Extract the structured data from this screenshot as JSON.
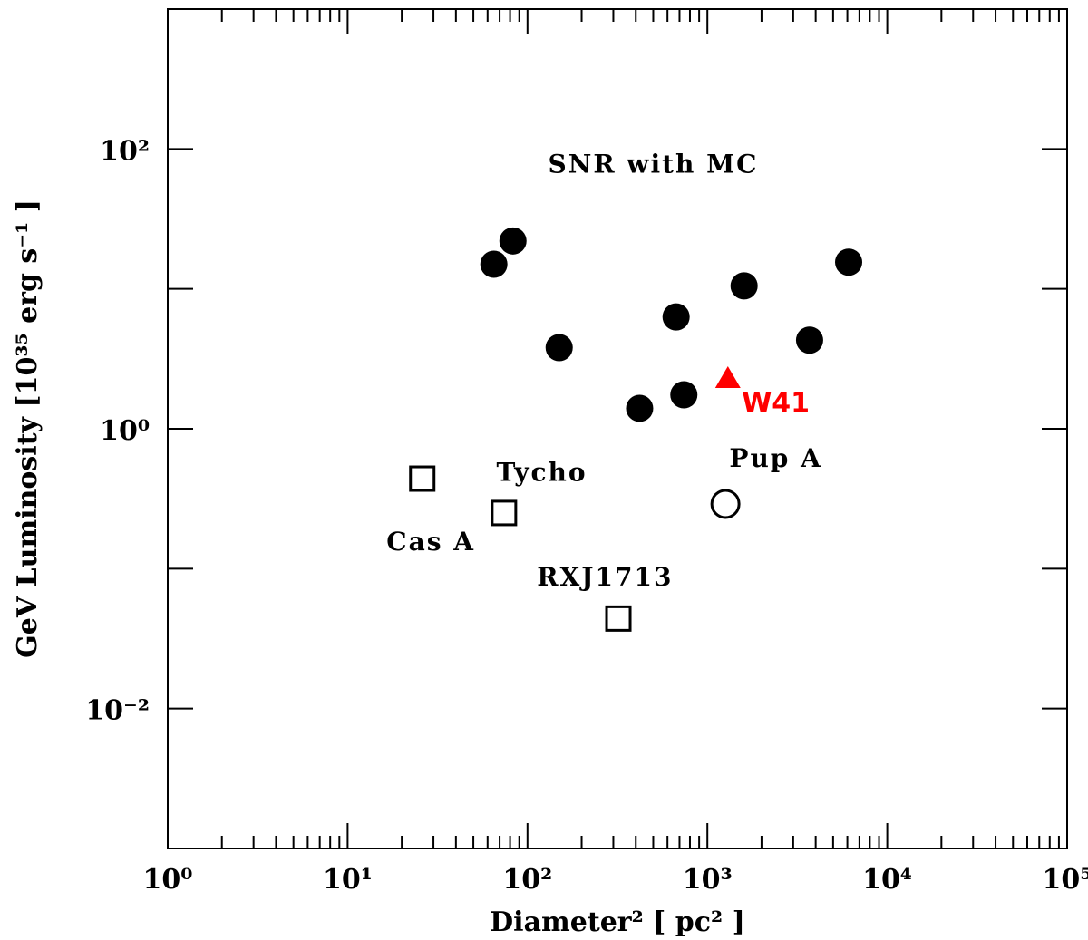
{
  "chart_data": {
    "type": "scatter",
    "xscale": "log",
    "yscale": "log",
    "xlim": [
      1,
      100000
    ],
    "ylim": [
      0.001,
      1000
    ],
    "xlabel": "Diameter² [ pc² ]",
    "ylabel": "GeV Luminosity [10³⁵ erg s⁻¹ ]",
    "x_ticks": [
      {
        "value": 1,
        "label": "10⁰"
      },
      {
        "value": 10,
        "label": "10¹"
      },
      {
        "value": 100,
        "label": "10²"
      },
      {
        "value": 1000,
        "label": "10³"
      },
      {
        "value": 10000,
        "label": "10⁴"
      },
      {
        "value": 100000,
        "label": "10⁵"
      }
    ],
    "y_ticks": [
      {
        "value": 100,
        "label": "10²"
      },
      {
        "value": 1,
        "label": "10⁰"
      },
      {
        "value": 0.01,
        "label": "10⁻²"
      }
    ],
    "grid": false,
    "series": [
      {
        "marker": "filled-circle",
        "color": "#000000",
        "points": [
          {
            "x": 65,
            "y": 15
          },
          {
            "x": 83,
            "y": 22
          },
          {
            "x": 150,
            "y": 3.8
          },
          {
            "x": 420,
            "y": 1.4
          },
          {
            "x": 670,
            "y": 6.3
          },
          {
            "x": 740,
            "y": 1.75
          },
          {
            "x": 1600,
            "y": 10.5
          },
          {
            "x": 3700,
            "y": 4.3
          },
          {
            "x": 6100,
            "y": 15.5
          }
        ]
      },
      {
        "marker": "filled-triangle",
        "color": "#ff0000",
        "points": [
          {
            "x": 1300,
            "y": 2.3
          }
        ]
      },
      {
        "marker": "open-square",
        "color": "#000000",
        "points": [
          {
            "x": 26,
            "y": 0.44
          },
          {
            "x": 74,
            "y": 0.25
          },
          {
            "x": 320,
            "y": 0.044
          }
        ]
      },
      {
        "marker": "open-circle",
        "color": "#000000",
        "points": [
          {
            "x": 1260,
            "y": 0.29
          }
        ]
      }
    ],
    "annotations": [
      {
        "text": "SNR with MC",
        "x": 500,
        "y": 80,
        "color": "#000000"
      },
      {
        "text": "W41",
        "x": 2400,
        "y": 1.55,
        "color": "#ff0000"
      },
      {
        "text": "Pup A",
        "x": 2400,
        "y": 0.63,
        "color": "#000000"
      },
      {
        "text": "Tycho",
        "x": 120,
        "y": 0.5,
        "color": "#000000"
      },
      {
        "text": "Cas A",
        "x": 29,
        "y": 0.16,
        "color": "#000000"
      },
      {
        "text": "RXJ1713",
        "x": 270,
        "y": 0.089,
        "color": "#000000"
      }
    ]
  }
}
